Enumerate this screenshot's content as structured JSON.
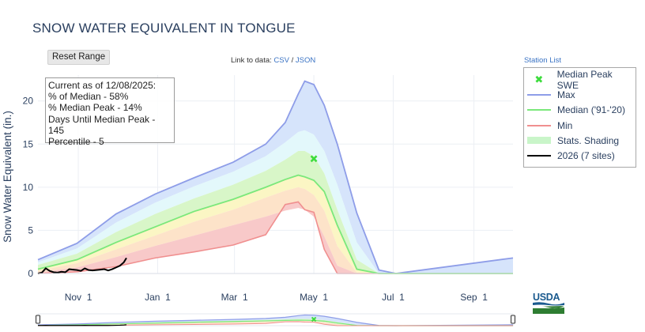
{
  "title": "SNOW WATER EQUIVALENT IN TONGUE",
  "toolbar": {
    "reset_label": "Reset Range"
  },
  "links": {
    "prefix": "Link to data: ",
    "csv": "CSV",
    "sep": " / ",
    "json": "JSON",
    "station_list": "Station List"
  },
  "status": {
    "current_as_of": "Current as of 12/08/2025:",
    "pct_median": "% of Median - 58%",
    "pct_median_peak": "% Median Peak - 14%",
    "days_until_peak": "Days Until Median Peak - 145",
    "percentile": "Percentile - 5"
  },
  "legend": [
    {
      "label": "Median Peak SWE",
      "kind": "marker",
      "color": "#3ddc3d"
    },
    {
      "label": "Max",
      "kind": "line",
      "color": "#8e9de8"
    },
    {
      "label": "Median ('91-'20)",
      "kind": "line",
      "color": "#7be87b"
    },
    {
      "label": "Min",
      "kind": "line",
      "color": "#f08f8f"
    },
    {
      "label": "Stats. Shading",
      "kind": "fill",
      "color": "#c9f5c9"
    },
    {
      "label": "2026 (7 sites)",
      "kind": "line",
      "color": "#000000"
    }
  ],
  "logo": {
    "text": "USDA"
  },
  "chart_data": {
    "type": "area",
    "ylabel": "Snow Water Equivalent (in.)",
    "xlabel": "",
    "x_unit": "day of water year (Oct 1 = 0)",
    "xlim": [
      0,
      365
    ],
    "ylim": [
      0,
      23
    ],
    "y_ticks": [
      0,
      5,
      10,
      15,
      20
    ],
    "x_ticks": [
      {
        "x": 31,
        "label": "Nov 1"
      },
      {
        "x": 92,
        "label": "Jan 1"
      },
      {
        "x": 151,
        "label": "Mar 1"
      },
      {
        "x": 212,
        "label": "May 1"
      },
      {
        "x": 273,
        "label": "Jul 1"
      },
      {
        "x": 335,
        "label": "Sep 1"
      }
    ],
    "grid": true,
    "legend_position": "right",
    "colors": {
      "max": "#8e9de8",
      "median": "#7be87b",
      "min": "#f08f8f",
      "current": "#000000",
      "band_90_max": "#d6e4fb",
      "band_70_90": "#e3f8fb",
      "band_median_70": "#d8f6c8",
      "band_30_median": "#fbf6c4",
      "band_10_30": "#fde3c9",
      "band_min_10": "#f8c9c9"
    },
    "x": [
      0,
      30,
      60,
      90,
      120,
      150,
      175,
      190,
      200,
      205,
      212,
      220,
      230,
      245,
      262,
      275,
      365
    ],
    "series": {
      "max": [
        1.6,
        3.5,
        6.9,
        9.2,
        11.1,
        12.9,
        15.0,
        17.5,
        20.8,
        22.3,
        21.9,
        19.5,
        15.0,
        7.0,
        0.4,
        0.0,
        1.8
      ],
      "p90": [
        1.3,
        2.9,
        5.9,
        8.2,
        10.1,
        11.8,
        13.6,
        15.2,
        16.4,
        16.6,
        16.1,
        14.2,
        10.3,
        3.6,
        0.0,
        0.0,
        0.0
      ],
      "p70": [
        1.0,
        2.3,
        4.8,
        6.9,
        8.7,
        10.3,
        11.9,
        13.2,
        14.2,
        14.2,
        13.6,
        11.6,
        7.4,
        1.6,
        0.0,
        0.0,
        0.0
      ],
      "median": [
        0.5,
        1.6,
        3.6,
        5.4,
        7.2,
        8.6,
        10.0,
        10.9,
        11.4,
        11.2,
        10.8,
        9.5,
        5.6,
        0.5,
        0.0,
        0.0,
        0.0
      ],
      "p30": [
        0.3,
        1.2,
        2.8,
        4.4,
        6.0,
        7.4,
        8.8,
        9.6,
        10.0,
        9.8,
        9.1,
        7.3,
        3.2,
        0.1,
        0.0,
        0.0,
        0.0
      ],
      "p10": [
        0.1,
        0.7,
        1.9,
        3.2,
        4.4,
        5.6,
        6.6,
        7.3,
        7.6,
        7.4,
        6.6,
        4.3,
        0.9,
        0.0,
        0.0,
        0.0,
        0.0
      ],
      "min": [
        0.0,
        0.2,
        0.8,
        1.8,
        2.5,
        3.3,
        4.5,
        8.0,
        8.3,
        7.4,
        7.1,
        2.8,
        0.0,
        0.0,
        0.0,
        0.0,
        0.0
      ]
    },
    "current_2026": {
      "name": "2026 (7 sites)",
      "x": [
        0,
        3,
        6,
        9,
        12,
        15,
        18,
        21,
        24,
        27,
        30,
        33,
        36,
        39,
        42,
        45,
        48,
        51,
        54,
        57,
        60,
        63,
        66,
        68
      ],
      "y": [
        0.0,
        0.1,
        0.6,
        0.3,
        0.15,
        0.1,
        0.2,
        0.15,
        0.5,
        0.45,
        0.4,
        0.3,
        0.6,
        0.4,
        0.35,
        0.4,
        0.45,
        0.5,
        0.35,
        0.5,
        0.7,
        0.9,
        1.3,
        1.8
      ]
    },
    "median_peak": {
      "x": 212,
      "y": 13.3,
      "label": "Median Peak SWE"
    }
  }
}
